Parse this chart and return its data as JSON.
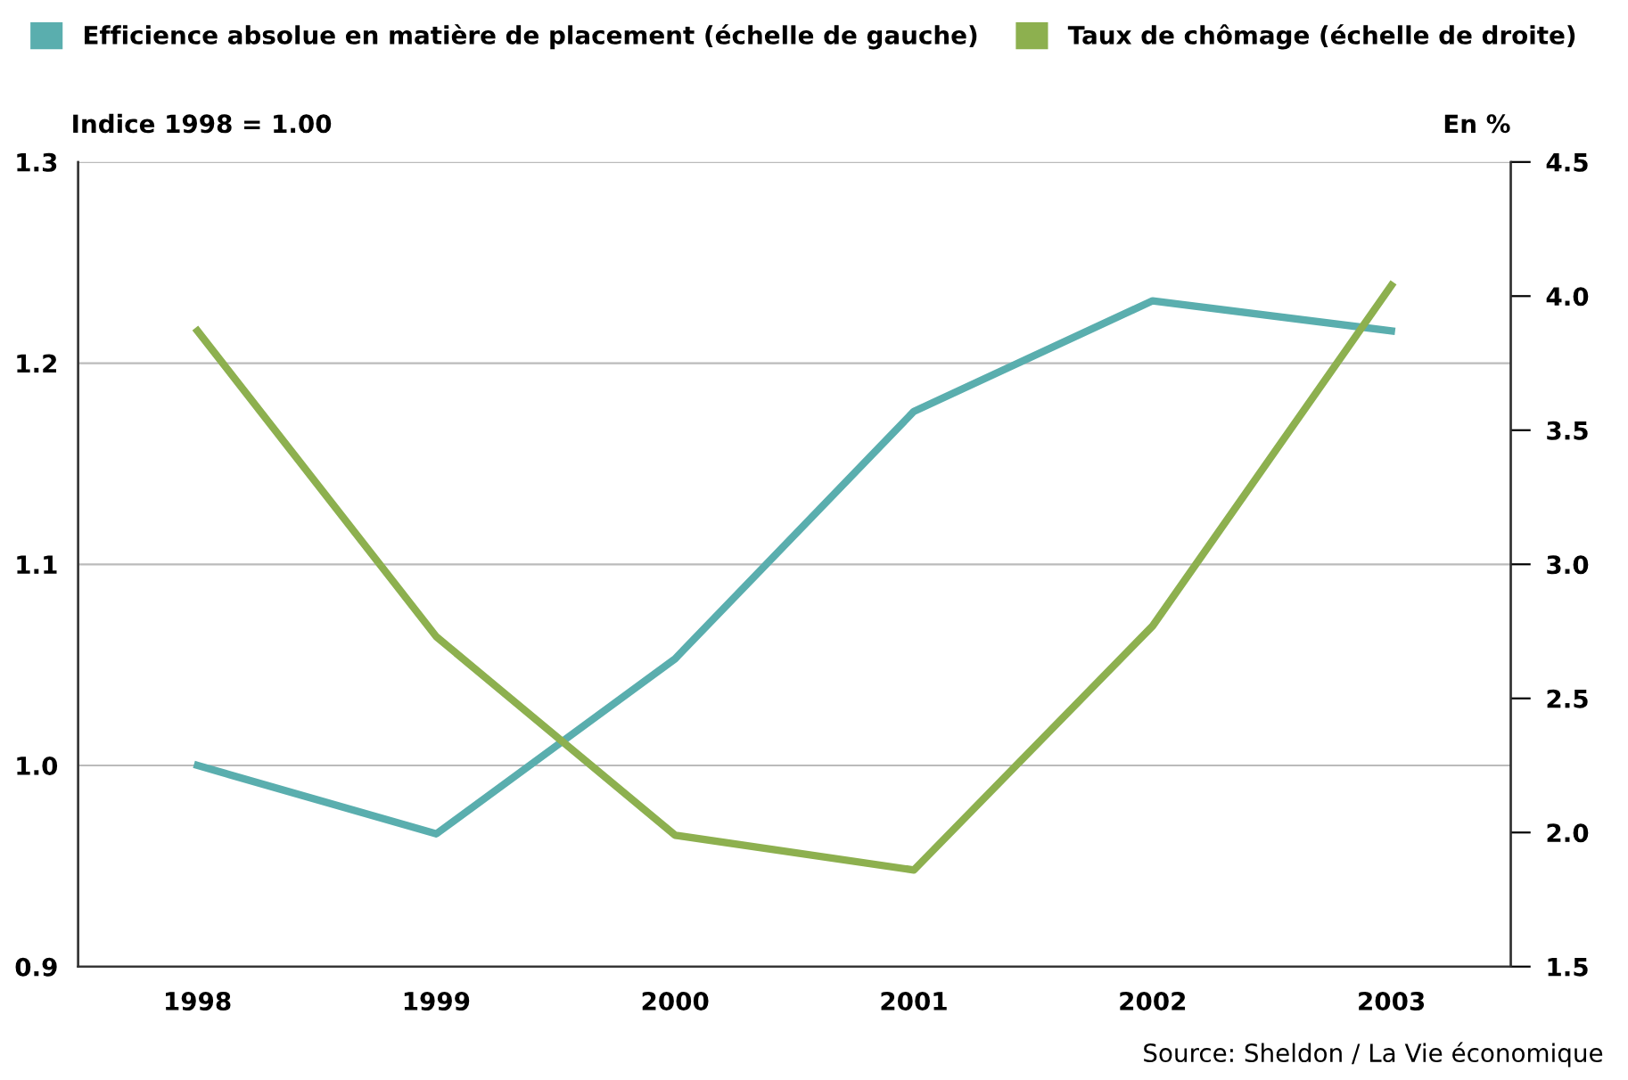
{
  "chart_data": {
    "type": "line",
    "categories": [
      "1998",
      "1999",
      "2000",
      "2001",
      "2002",
      "2003"
    ],
    "series": [
      {
        "name": "Efficience absolue en matière de placement (échelle de gauche)",
        "color": "#5aaeae",
        "values": [
          1.0,
          0.966,
          1.053,
          1.176,
          1.231,
          1.216
        ]
      },
      {
        "name": "Taux de chômage (échelle de droite)",
        "color": "#8db04f",
        "axis": "y2",
        "values": [
          3.87,
          2.73,
          1.99,
          1.86,
          2.77,
          4.04
        ]
      }
    ],
    "ylabel": "Indice 1998 = 1.00",
    "y2label": "En %",
    "ylim": [
      0.9,
      1.3
    ],
    "yticks": [
      {
        "value": 0.9,
        "label": "0.9"
      },
      {
        "value": 1.0,
        "label": "1.0"
      },
      {
        "value": 1.1,
        "label": "1.1"
      },
      {
        "value": 1.2,
        "label": "1.2"
      },
      {
        "value": 1.3,
        "label": "1.3"
      }
    ],
    "y2lim": [
      1.5,
      4.5
    ],
    "y2ticks": [
      {
        "value": 1.5,
        "label": "1.5"
      },
      {
        "value": 2.0,
        "label": "2.0"
      },
      {
        "value": 2.5,
        "label": "2.5"
      },
      {
        "value": 3.0,
        "label": "3.0"
      },
      {
        "value": 3.5,
        "label": "3.5"
      },
      {
        "value": 4.0,
        "label": "4.0"
      },
      {
        "value": 4.5,
        "label": "4.5"
      }
    ],
    "grid": "y",
    "legend": "top",
    "line_style": "solid",
    "marker": "none",
    "annotations": [
      "Source: Sheldon / La Vie économique"
    ]
  }
}
